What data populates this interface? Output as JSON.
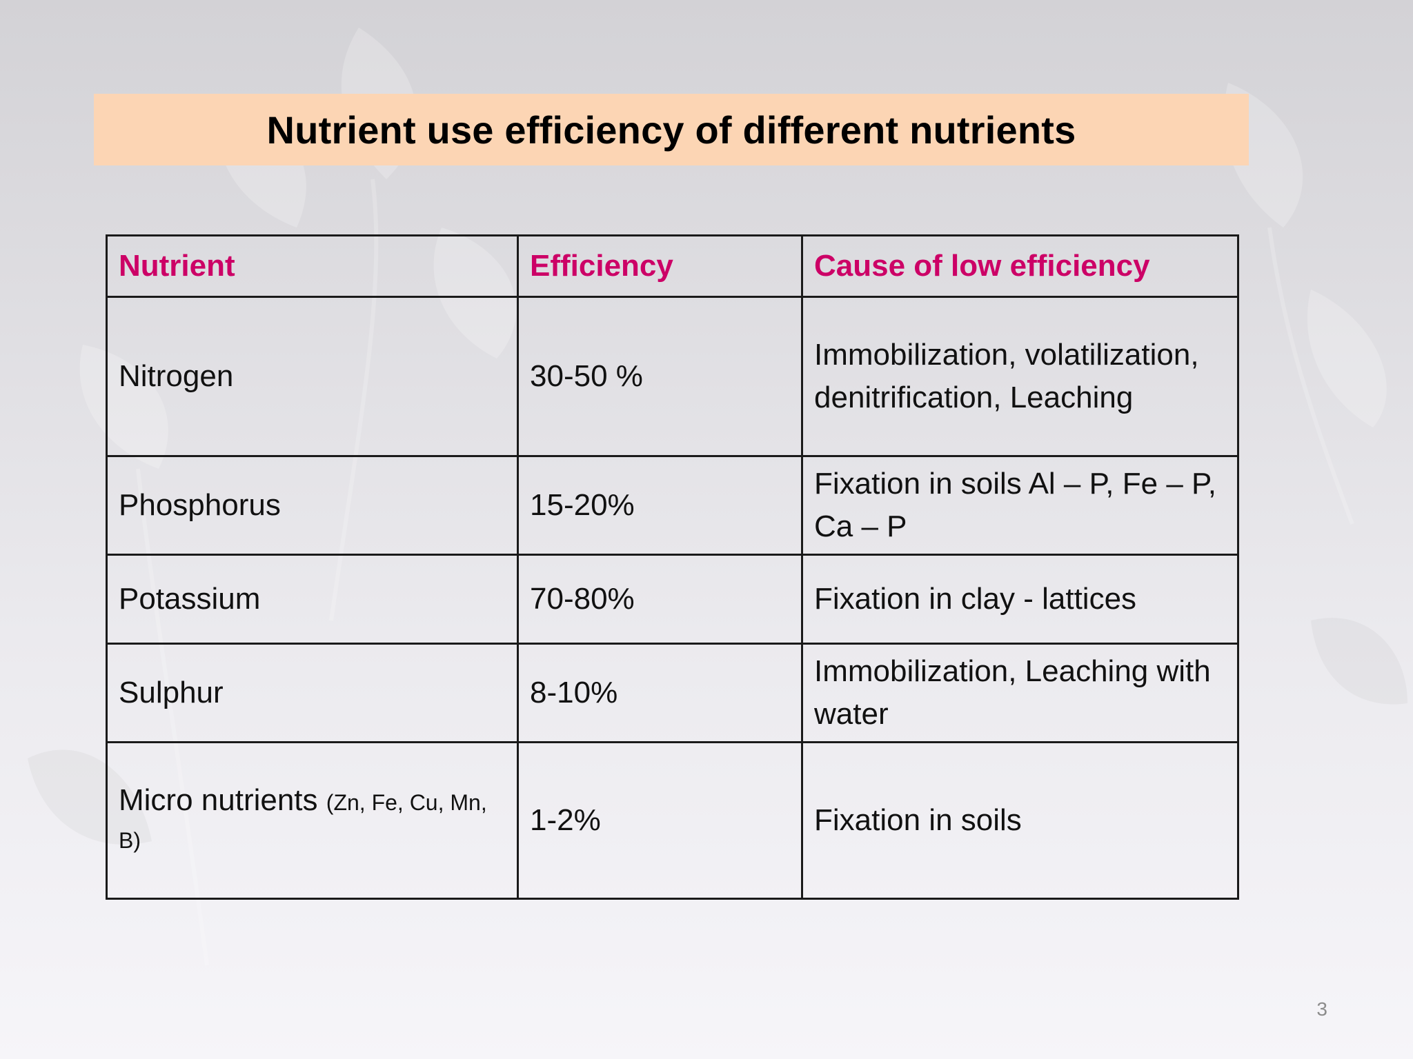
{
  "slide": {
    "title": "Nutrient use efficiency of different nutrients",
    "page_number": "3",
    "header_color": "#cc0066",
    "banner_color": "#fcd5b4"
  },
  "table": {
    "headers": [
      "Nutrient",
      "Efficiency",
      "Cause of low efficiency"
    ],
    "rows": [
      {
        "nutrient": "Nitrogen",
        "efficiency": "30-50 %",
        "cause": "Immobilization, volatilization, denitrification, Leaching"
      },
      {
        "nutrient": "Phosphorus",
        "efficiency": "15-20%",
        "cause": "Fixation in soils Al – P, Fe – P, Ca – P"
      },
      {
        "nutrient": "Potassium",
        "efficiency": "70-80%",
        "cause": "Fixation in clay - lattices"
      },
      {
        "nutrient": "Sulphur",
        "efficiency": "8-10%",
        "cause": "Immobilization, Leaching with water"
      },
      {
        "nutrient": "Micro nutrients",
        "nutrient_note": "(Zn, Fe, Cu, Mn, B)",
        "efficiency": "1-2%",
        "cause": "Fixation in soils"
      }
    ]
  }
}
